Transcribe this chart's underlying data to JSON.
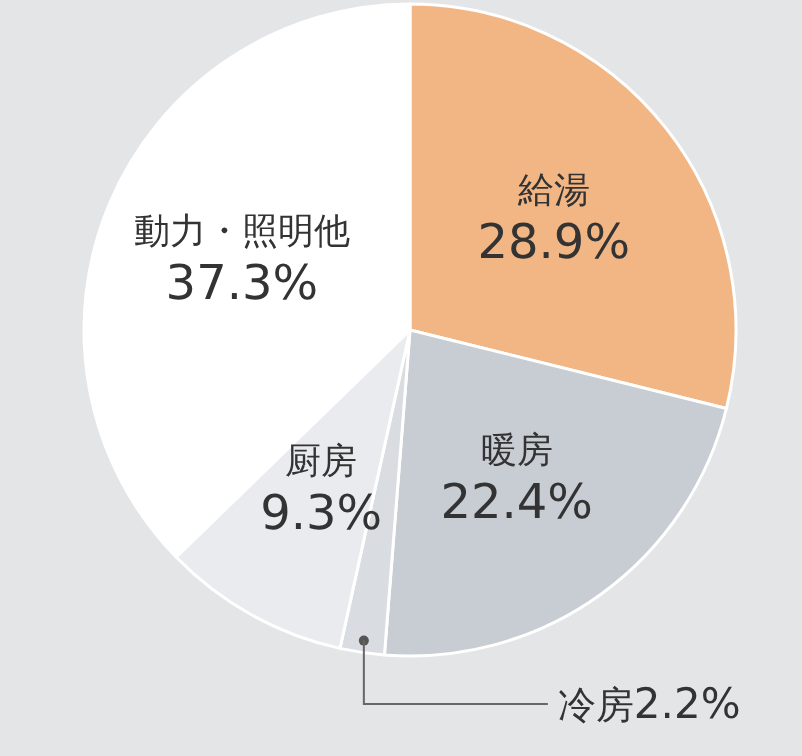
{
  "chart_data": {
    "type": "pie",
    "categories": [
      "給湯",
      "暖房",
      "冷房",
      "厨房",
      "動力・照明他"
    ],
    "values": [
      28.9,
      22.4,
      2.2,
      9.3,
      37.3
    ],
    "value_labels": [
      "28.9%",
      "22.4%",
      "2.2%",
      "9.3%",
      "37.3%"
    ],
    "colors": [
      "#f2b685",
      "#c8ccd3",
      "#d9dce1",
      "#e9ebee",
      "#ffffff"
    ]
  }
}
